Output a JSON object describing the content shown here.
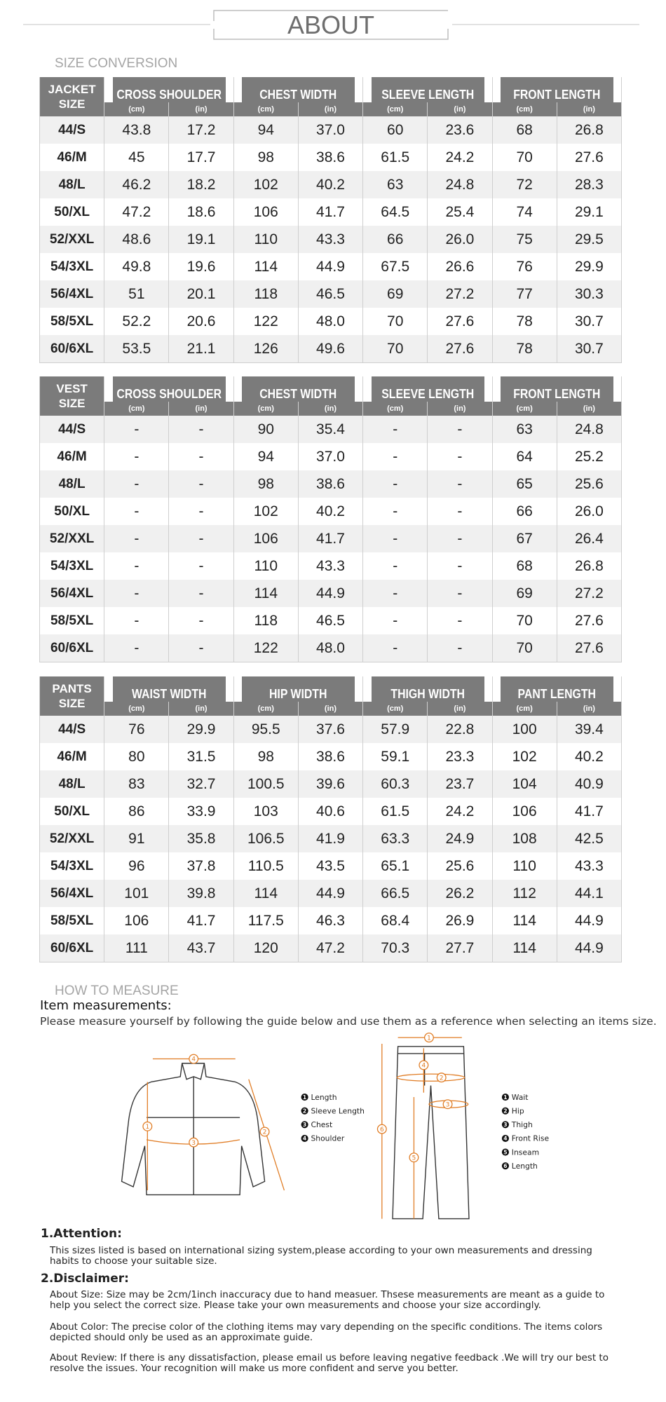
{
  "header": {
    "title": "ABOUT"
  },
  "size_conversion": {
    "title": "SIZE CONVERSION",
    "tables": [
      {
        "label": "JACKET SIZE",
        "groups": [
          "CROSS SHOULDER",
          "CHEST WIDTH",
          "SLEEVE LENGTH",
          "FRONT LENGTH"
        ],
        "units": [
          "(cm)",
          "(in)"
        ],
        "rows": [
          [
            "44/S",
            "43.8",
            "17.2",
            "94",
            "37.0",
            "60",
            "23.6",
            "68",
            "26.8"
          ],
          [
            "46/M",
            "45",
            "17.7",
            "98",
            "38.6",
            "61.5",
            "24.2",
            "70",
            "27.6"
          ],
          [
            "48/L",
            "46.2",
            "18.2",
            "102",
            "40.2",
            "63",
            "24.8",
            "72",
            "28.3"
          ],
          [
            "50/XL",
            "47.2",
            "18.6",
            "106",
            "41.7",
            "64.5",
            "25.4",
            "74",
            "29.1"
          ],
          [
            "52/XXL",
            "48.6",
            "19.1",
            "110",
            "43.3",
            "66",
            "26.0",
            "75",
            "29.5"
          ],
          [
            "54/3XL",
            "49.8",
            "19.6",
            "114",
            "44.9",
            "67.5",
            "26.6",
            "76",
            "29.9"
          ],
          [
            "56/4XL",
            "51",
            "20.1",
            "118",
            "46.5",
            "69",
            "27.2",
            "77",
            "30.3"
          ],
          [
            "58/5XL",
            "52.2",
            "20.6",
            "122",
            "48.0",
            "70",
            "27.6",
            "78",
            "30.7"
          ],
          [
            "60/6XL",
            "53.5",
            "21.1",
            "126",
            "49.6",
            "70",
            "27.6",
            "78",
            "30.7"
          ]
        ]
      },
      {
        "label": "VEST SIZE",
        "groups": [
          "CROSS SHOULDER",
          "CHEST WIDTH",
          "SLEEVE LENGTH",
          "FRONT LENGTH"
        ],
        "units": [
          "(cm)",
          "(in)"
        ],
        "rows": [
          [
            "44/S",
            "-",
            "-",
            "90",
            "35.4",
            "-",
            "-",
            "63",
            "24.8"
          ],
          [
            "46/M",
            "-",
            "-",
            "94",
            "37.0",
            "-",
            "-",
            "64",
            "25.2"
          ],
          [
            "48/L",
            "-",
            "-",
            "98",
            "38.6",
            "-",
            "-",
            "65",
            "25.6"
          ],
          [
            "50/XL",
            "-",
            "-",
            "102",
            "40.2",
            "-",
            "-",
            "66",
            "26.0"
          ],
          [
            "52/XXL",
            "-",
            "-",
            "106",
            "41.7",
            "-",
            "-",
            "67",
            "26.4"
          ],
          [
            "54/3XL",
            "-",
            "-",
            "110",
            "43.3",
            "-",
            "-",
            "68",
            "26.8"
          ],
          [
            "56/4XL",
            "-",
            "-",
            "114",
            "44.9",
            "-",
            "-",
            "69",
            "27.2"
          ],
          [
            "58/5XL",
            "-",
            "-",
            "118",
            "46.5",
            "-",
            "-",
            "70",
            "27.6"
          ],
          [
            "60/6XL",
            "-",
            "-",
            "122",
            "48.0",
            "-",
            "-",
            "70",
            "27.6"
          ]
        ]
      },
      {
        "label": "PANTS SIZE",
        "groups": [
          "WAIST WIDTH",
          "HIP WIDTH",
          "THIGH WIDTH",
          "PANT LENGTH"
        ],
        "units": [
          "(cm)",
          "(in)"
        ],
        "rows": [
          [
            "44/S",
            "76",
            "29.9",
            "95.5",
            "37.6",
            "57.9",
            "22.8",
            "100",
            "39.4"
          ],
          [
            "46/M",
            "80",
            "31.5",
            "98",
            "38.6",
            "59.1",
            "23.3",
            "102",
            "40.2"
          ],
          [
            "48/L",
            "83",
            "32.7",
            "100.5",
            "39.6",
            "60.3",
            "23.7",
            "104",
            "40.9"
          ],
          [
            "50/XL",
            "86",
            "33.9",
            "103",
            "40.6",
            "61.5",
            "24.2",
            "106",
            "41.7"
          ],
          [
            "52/XXL",
            "91",
            "35.8",
            "106.5",
            "41.9",
            "63.3",
            "24.9",
            "108",
            "42.5"
          ],
          [
            "54/3XL",
            "96",
            "37.8",
            "110.5",
            "43.5",
            "65.1",
            "25.6",
            "110",
            "43.3"
          ],
          [
            "56/4XL",
            "101",
            "39.8",
            "114",
            "44.9",
            "66.5",
            "26.2",
            "112",
            "44.1"
          ],
          [
            "58/5XL",
            "106",
            "41.7",
            "117.5",
            "46.3",
            "68.4",
            "26.9",
            "114",
            "44.9"
          ],
          [
            "60/6XL",
            "111",
            "43.7",
            "120",
            "47.2",
            "70.3",
            "27.7",
            "114",
            "44.9"
          ]
        ]
      }
    ]
  },
  "how_to_measure": {
    "title": "HOW TO MEASURE",
    "heading": "Item measurements:",
    "instruction": "Please measure yourself by following the guide below and use them as a reference when selecting an items size.",
    "jacket_legend": [
      {
        "num": "1",
        "label": "Length"
      },
      {
        "num": "2",
        "label": "Sleeve Length"
      },
      {
        "num": "3",
        "label": "Chest"
      },
      {
        "num": "4",
        "label": "Shoulder"
      }
    ],
    "pants_legend": [
      {
        "num": "1",
        "label": "Wait"
      },
      {
        "num": "2",
        "label": "Hip"
      },
      {
        "num": "3",
        "label": "Thigh"
      },
      {
        "num": "4",
        "label": "Front Rise"
      },
      {
        "num": "5",
        "label": "Inseam"
      },
      {
        "num": "6",
        "label": "Length"
      }
    ]
  },
  "attention": {
    "title": "1.Attention:",
    "text": "This sizes listed is based on international sizing system,please according to your own measurements and dressing habits to choose your suitable size."
  },
  "disclaimer": {
    "title": "2.Disclaimer:",
    "paragraphs": [
      "About Size: Size may be 2cm/1inch inaccuracy due to hand measuer. Thsese measurements are meant as a guide to help you select the correct size. Please take your own measurements and choose your size accordingly.",
      "About Color: The precise color of the clothing items may vary depending on the specific conditions. The items colors depicted should only be used as an approximate guide.",
      "About Review: If there is any dissatisfaction, please email us before leaving negative feedback .We will try our best to resolve the issues. Your recognition will make us more confident and serve you better."
    ]
  }
}
